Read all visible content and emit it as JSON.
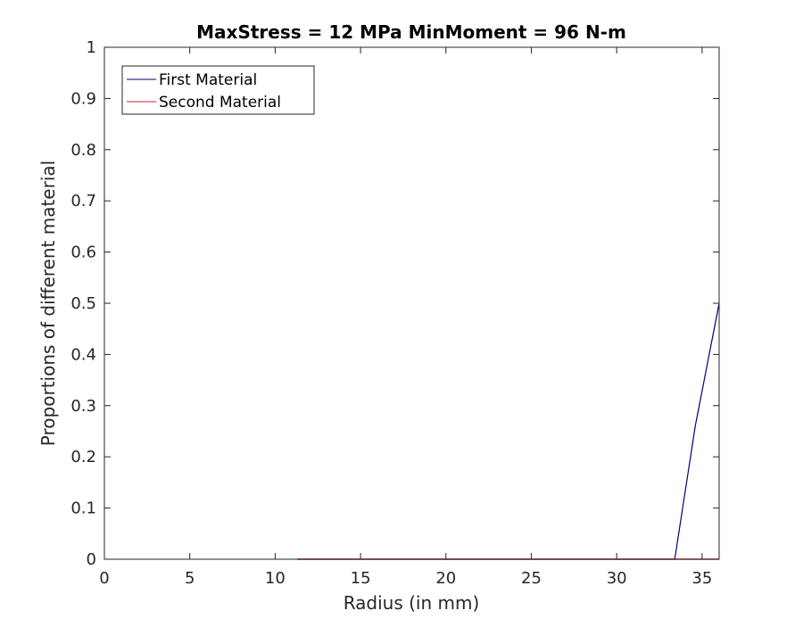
{
  "chart_data": {
    "type": "line",
    "title": "MaxStress = 12 MPa MinMoment = 96 N-m",
    "xlabel": "Radius (in mm)",
    "ylabel": "Proportions of different material",
    "xlim": [
      0,
      36
    ],
    "ylim": [
      0,
      1
    ],
    "xticks": [
      "0",
      "5",
      "10",
      "15",
      "20",
      "25",
      "30",
      "35"
    ],
    "yticks": [
      "0",
      "0.1",
      "0.2",
      "0.3",
      "0.4",
      "0.5",
      "0.6",
      "0.7",
      "0.8",
      "0.9",
      "1"
    ],
    "grid": false,
    "legend_position": "top-left",
    "series": [
      {
        "name": "First Material",
        "color": "#00007f",
        "x": [
          11.3,
          33.4,
          34.6,
          36
        ],
        "y": [
          0,
          0,
          0.26,
          0.5
        ]
      },
      {
        "name": "Second Material",
        "color": "#d62020",
        "x": [
          11.3,
          36
        ],
        "y": [
          0,
          0
        ]
      }
    ]
  }
}
